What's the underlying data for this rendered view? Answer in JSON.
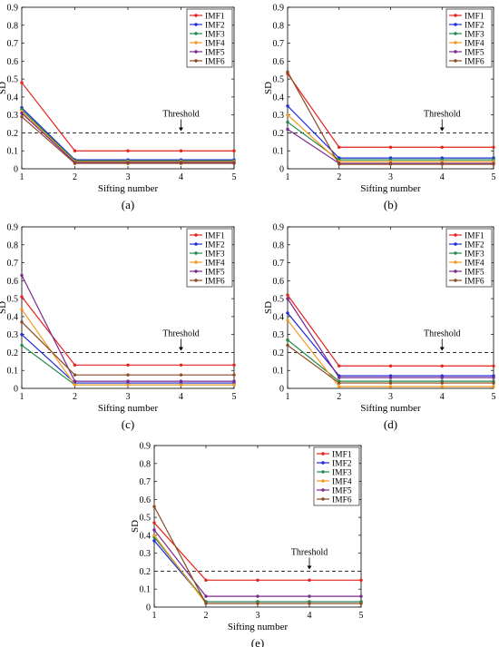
{
  "colors": {
    "IMF1": "#e8201c",
    "IMF2": "#1f2bd6",
    "IMF3": "#1f8a4c",
    "IMF4": "#f39a1f",
    "IMF5": "#7a2a8c",
    "IMF6": "#8a4a22",
    "threshold": "#333333"
  },
  "chart_data": [
    {
      "type": "line",
      "label": "(a)",
      "xlabel": "Sifting number",
      "ylabel": "SD",
      "x": [
        1,
        2,
        3,
        4,
        5
      ],
      "xlim": [
        1,
        5
      ],
      "ylim": [
        0,
        0.9
      ],
      "yticks": [
        0,
        0.1,
        0.2,
        0.3,
        0.4,
        0.5,
        0.6,
        0.7,
        0.8,
        0.9
      ],
      "threshold": {
        "label": "Threshold",
        "value": 0.2
      },
      "legend": "top-right",
      "series": [
        {
          "name": "IMF1",
          "values": [
            0.48,
            0.1,
            0.1,
            0.1,
            0.1
          ]
        },
        {
          "name": "IMF2",
          "values": [
            0.34,
            0.05,
            0.05,
            0.05,
            0.05
          ]
        },
        {
          "name": "IMF3",
          "values": [
            0.33,
            0.045,
            0.045,
            0.045,
            0.045
          ]
        },
        {
          "name": "IMF4",
          "values": [
            0.32,
            0.04,
            0.04,
            0.04,
            0.04
          ]
        },
        {
          "name": "IMF5",
          "values": [
            0.31,
            0.035,
            0.035,
            0.035,
            0.035
          ]
        },
        {
          "name": "IMF6",
          "values": [
            0.29,
            0.03,
            0.03,
            0.03,
            0.03
          ]
        }
      ]
    },
    {
      "type": "line",
      "label": "(b)",
      "xlabel": "Sifting number",
      "ylabel": "SD",
      "x": [
        1,
        2,
        3,
        4,
        5
      ],
      "xlim": [
        1,
        5
      ],
      "ylim": [
        0,
        0.9
      ],
      "yticks": [
        0,
        0.1,
        0.2,
        0.3,
        0.4,
        0.5,
        0.6,
        0.7,
        0.8,
        0.9
      ],
      "threshold": {
        "label": "Threshold",
        "value": 0.2
      },
      "legend": "top-right",
      "series": [
        {
          "name": "IMF1",
          "values": [
            0.53,
            0.12,
            0.12,
            0.12,
            0.12
          ]
        },
        {
          "name": "IMF2",
          "values": [
            0.35,
            0.06,
            0.06,
            0.06,
            0.06
          ]
        },
        {
          "name": "IMF3",
          "values": [
            0.26,
            0.05,
            0.05,
            0.05,
            0.05
          ]
        },
        {
          "name": "IMF4",
          "values": [
            0.3,
            0.04,
            0.04,
            0.04,
            0.04
          ]
        },
        {
          "name": "IMF5",
          "values": [
            0.22,
            0.03,
            0.03,
            0.03,
            0.03
          ]
        },
        {
          "name": "IMF6",
          "values": [
            0.54,
            0.025,
            0.025,
            0.025,
            0.025
          ]
        }
      ]
    },
    {
      "type": "line",
      "label": "(c)",
      "xlabel": "Sifting number",
      "ylabel": "SD",
      "x": [
        1,
        2,
        3,
        4,
        5
      ],
      "xlim": [
        1,
        5
      ],
      "ylim": [
        0,
        0.9
      ],
      "yticks": [
        0,
        0.1,
        0.2,
        0.3,
        0.4,
        0.5,
        0.6,
        0.7,
        0.8,
        0.9
      ],
      "threshold": {
        "label": "Threshold",
        "value": 0.2
      },
      "legend": "top-right",
      "series": [
        {
          "name": "IMF1",
          "values": [
            0.51,
            0.13,
            0.13,
            0.13,
            0.13
          ]
        },
        {
          "name": "IMF2",
          "values": [
            0.3,
            0.03,
            0.03,
            0.03,
            0.03
          ]
        },
        {
          "name": "IMF3",
          "values": [
            0.24,
            0.02,
            0.02,
            0.02,
            0.02
          ]
        },
        {
          "name": "IMF4",
          "values": [
            0.44,
            0.02,
            0.02,
            0.02,
            0.02
          ]
        },
        {
          "name": "IMF5",
          "values": [
            0.63,
            0.04,
            0.04,
            0.04,
            0.04
          ]
        },
        {
          "name": "IMF6",
          "values": [
            0.37,
            0.075,
            0.075,
            0.075,
            0.075
          ]
        }
      ]
    },
    {
      "type": "line",
      "label": "(d)",
      "xlabel": "Sifting number",
      "ylabel": "SD",
      "x": [
        1,
        2,
        3,
        4,
        5
      ],
      "xlim": [
        1,
        5
      ],
      "ylim": [
        0,
        0.9
      ],
      "yticks": [
        0,
        0.1,
        0.2,
        0.3,
        0.4,
        0.5,
        0.6,
        0.7,
        0.8,
        0.9
      ],
      "threshold": {
        "label": "Threshold",
        "value": 0.2
      },
      "legend": "top-right",
      "series": [
        {
          "name": "IMF1",
          "values": [
            0.52,
            0.125,
            0.125,
            0.125,
            0.125
          ]
        },
        {
          "name": "IMF2",
          "values": [
            0.42,
            0.07,
            0.07,
            0.07,
            0.07
          ]
        },
        {
          "name": "IMF3",
          "values": [
            0.27,
            0.04,
            0.04,
            0.04,
            0.04
          ]
        },
        {
          "name": "IMF4",
          "values": [
            0.38,
            0.01,
            0.01,
            0.01,
            0.01
          ]
        },
        {
          "name": "IMF5",
          "values": [
            0.5,
            0.06,
            0.06,
            0.06,
            0.06
          ]
        },
        {
          "name": "IMF6",
          "values": [
            0.24,
            0.03,
            0.03,
            0.03,
            0.03
          ]
        }
      ]
    },
    {
      "type": "line",
      "label": "(e)",
      "xlabel": "Sifting number",
      "ylabel": "SD",
      "x": [
        1,
        2,
        3,
        4,
        5
      ],
      "xlim": [
        1,
        5
      ],
      "ylim": [
        0,
        0.9
      ],
      "yticks": [
        0,
        0.1,
        0.2,
        0.3,
        0.4,
        0.5,
        0.6,
        0.7,
        0.8,
        0.9
      ],
      "threshold": {
        "label": "Threshold",
        "value": 0.2
      },
      "legend": "top-right",
      "series": [
        {
          "name": "IMF1",
          "values": [
            0.47,
            0.15,
            0.15,
            0.15,
            0.15
          ]
        },
        {
          "name": "IMF2",
          "values": [
            0.37,
            0.03,
            0.03,
            0.03,
            0.03
          ]
        },
        {
          "name": "IMF3",
          "values": [
            0.39,
            0.03,
            0.03,
            0.03,
            0.03
          ]
        },
        {
          "name": "IMF4",
          "values": [
            0.4,
            0.02,
            0.02,
            0.02,
            0.02
          ]
        },
        {
          "name": "IMF5",
          "values": [
            0.43,
            0.06,
            0.06,
            0.06,
            0.06
          ]
        },
        {
          "name": "IMF6",
          "values": [
            0.56,
            0.02,
            0.02,
            0.02,
            0.02
          ]
        }
      ]
    }
  ]
}
